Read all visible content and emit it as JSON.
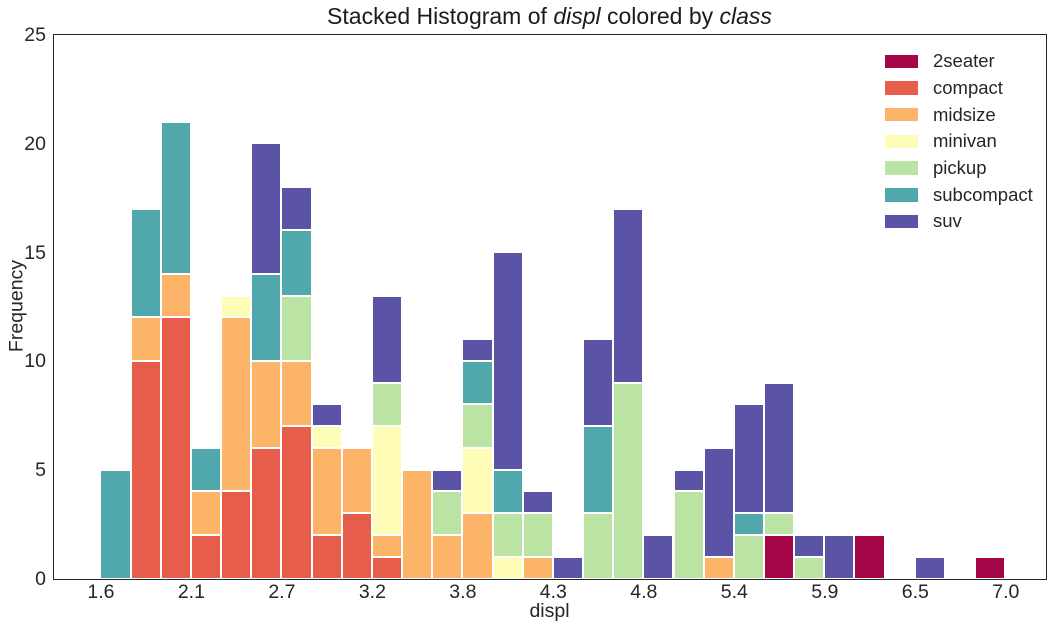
{
  "figure": {
    "background": "#ffffff",
    "axis_color": "#262626",
    "text_color": "#262626"
  },
  "chart_data": {
    "type": "bar",
    "variant": "stacked_histogram",
    "title": {
      "text": "Stacked Histogram of displ colored by class",
      "parts": [
        {
          "text": "Stacked Histogram of ",
          "italic": false
        },
        {
          "text": "displ",
          "italic": true
        },
        {
          "text": " colored by ",
          "italic": false
        },
        {
          "text": "class",
          "italic": true
        }
      ]
    },
    "xlabel": "displ",
    "ylabel": "Frequency",
    "bin_start": 1.6,
    "bin_width": 0.18,
    "n_bins": 30,
    "xlim": [
      1.32,
      7.24
    ],
    "ylim": [
      0,
      25
    ],
    "grid": false,
    "bar_edge_color": "#ffffff",
    "legend_position": "upper right",
    "xticks": {
      "values": [
        1.6,
        2.14,
        2.68,
        3.22,
        3.76,
        4.3,
        4.84,
        5.38,
        5.92,
        6.46,
        7.0
      ],
      "labels": [
        "1.6",
        "2.1",
        "2.7",
        "3.2",
        "3.8",
        "4.3",
        "4.8",
        "5.4",
        "5.9",
        "6.5",
        "7.0"
      ]
    },
    "yticks": {
      "values": [
        0,
        5,
        10,
        15,
        20,
        25
      ],
      "labels": [
        "0",
        "5",
        "10",
        "15",
        "20",
        "25"
      ]
    },
    "series": [
      {
        "name": "2seater",
        "color": "#a50647",
        "values": [
          0,
          0,
          0,
          0,
          0,
          0,
          0,
          0,
          0,
          0,
          0,
          0,
          0,
          0,
          0,
          0,
          0,
          0,
          0,
          0,
          0,
          0,
          2,
          0,
          0,
          2,
          0,
          0,
          0,
          1
        ]
      },
      {
        "name": "compact",
        "color": "#e65d4c",
        "values": [
          0,
          10,
          12,
          2,
          4,
          6,
          7,
          2,
          3,
          1,
          0,
          0,
          0,
          0,
          0,
          0,
          0,
          0,
          0,
          0,
          0,
          0,
          0,
          0,
          0,
          0,
          0,
          0,
          0,
          0
        ]
      },
      {
        "name": "midsize",
        "color": "#fbb468",
        "values": [
          0,
          2,
          2,
          2,
          8,
          4,
          3,
          4,
          3,
          1,
          5,
          2,
          3,
          0,
          1,
          0,
          0,
          0,
          0,
          0,
          1,
          0,
          0,
          0,
          0,
          0,
          0,
          0,
          0,
          0
        ]
      },
      {
        "name": "minivan",
        "color": "#fdfdb8",
        "values": [
          0,
          0,
          0,
          0,
          1,
          0,
          0,
          1,
          0,
          5,
          0,
          0,
          3,
          1,
          0,
          0,
          0,
          0,
          0,
          0,
          0,
          0,
          0,
          0,
          0,
          0,
          0,
          0,
          0,
          0
        ]
      },
      {
        "name": "pickup",
        "color": "#bae3a4",
        "values": [
          0,
          0,
          0,
          0,
          0,
          0,
          3,
          0,
          0,
          2,
          0,
          2,
          2,
          2,
          2,
          0,
          3,
          9,
          0,
          4,
          0,
          2,
          1,
          1,
          0,
          0,
          0,
          0,
          0,
          0
        ]
      },
      {
        "name": "subcompact",
        "color": "#50a8ac",
        "values": [
          5,
          5,
          7,
          2,
          0,
          4,
          3,
          0,
          0,
          0,
          0,
          0,
          2,
          2,
          0,
          0,
          4,
          0,
          0,
          0,
          0,
          1,
          0,
          0,
          0,
          0,
          0,
          0,
          0,
          0
        ]
      },
      {
        "name": "suv",
        "color": "#5b53a5",
        "values": [
          0,
          0,
          0,
          0,
          0,
          6,
          2,
          1,
          0,
          4,
          0,
          1,
          1,
          10,
          1,
          1,
          4,
          8,
          2,
          1,
          5,
          5,
          6,
          1,
          2,
          0,
          0,
          1,
          0,
          0
        ]
      }
    ],
    "bin_totals": [
      5,
      17,
      21,
      6,
      13,
      20,
      18,
      8,
      6,
      13,
      5,
      5,
      11,
      15,
      4,
      1,
      11,
      17,
      2,
      5,
      6,
      8,
      9,
      2,
      2,
      2,
      0,
      1,
      0,
      1
    ]
  }
}
